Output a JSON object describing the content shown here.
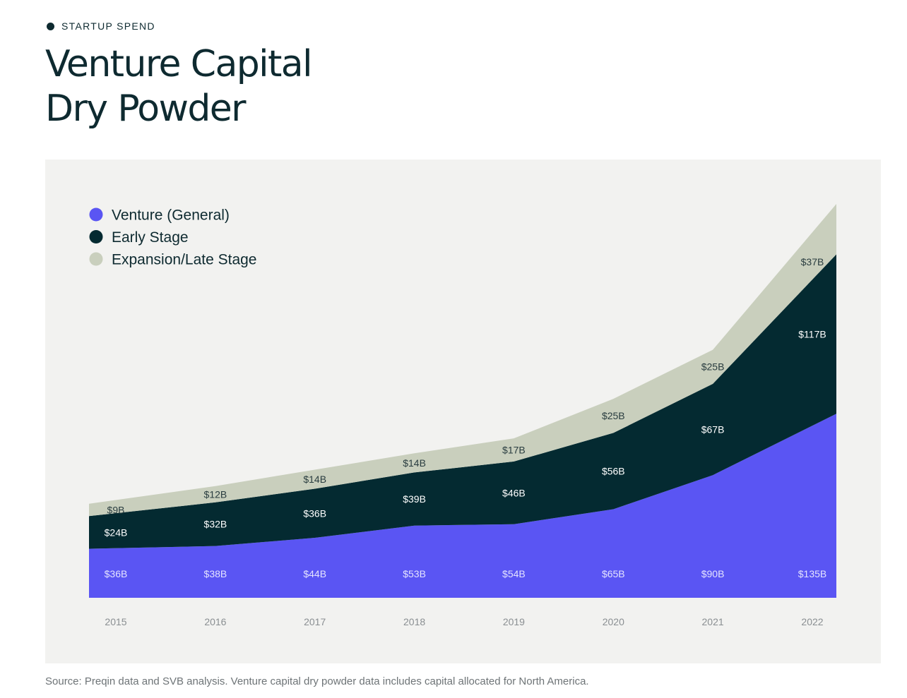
{
  "eyebrow": "STARTUP SPEND",
  "title": "Venture Capital\nDry Powder",
  "source": "Source: Preqin data and SVB analysis. Venture capital dry powder data includes capital allocated for North America.",
  "colors": {
    "venture_general": "#5a55f3",
    "early_stage": "#042a31",
    "expansion_late": "#c9cfbd"
  },
  "chart_data": {
    "type": "area",
    "stacked": true,
    "categories": [
      "2015",
      "2016",
      "2017",
      "2018",
      "2019",
      "2020",
      "2021",
      "2022"
    ],
    "series": [
      {
        "name": "Venture (General)",
        "color": "#5a55f3",
        "values": [
          36,
          38,
          44,
          53,
          54,
          65,
          90,
          135
        ],
        "labels": [
          "$36B",
          "$38B",
          "$44B",
          "$53B",
          "$54B",
          "$65B",
          "$90B",
          "$135B"
        ]
      },
      {
        "name": "Early Stage",
        "color": "#042a31",
        "values": [
          24,
          32,
          36,
          39,
          46,
          56,
          67,
          117
        ],
        "labels": [
          "$24B",
          "$32B",
          "$36B",
          "$39B",
          "$46B",
          "$56B",
          "$67B",
          "$117B"
        ]
      },
      {
        "name": "Expansion/Late Stage",
        "color": "#c9cfbd",
        "values": [
          9,
          12,
          14,
          14,
          17,
          25,
          25,
          37
        ],
        "labels": [
          "$9B",
          "$12B",
          "$14B",
          "$14B",
          "$17B",
          "$25B",
          "$25B",
          "$37B"
        ]
      }
    ],
    "ylim": [
      0,
      289
    ],
    "grid": false,
    "legend_position": "top-left"
  }
}
